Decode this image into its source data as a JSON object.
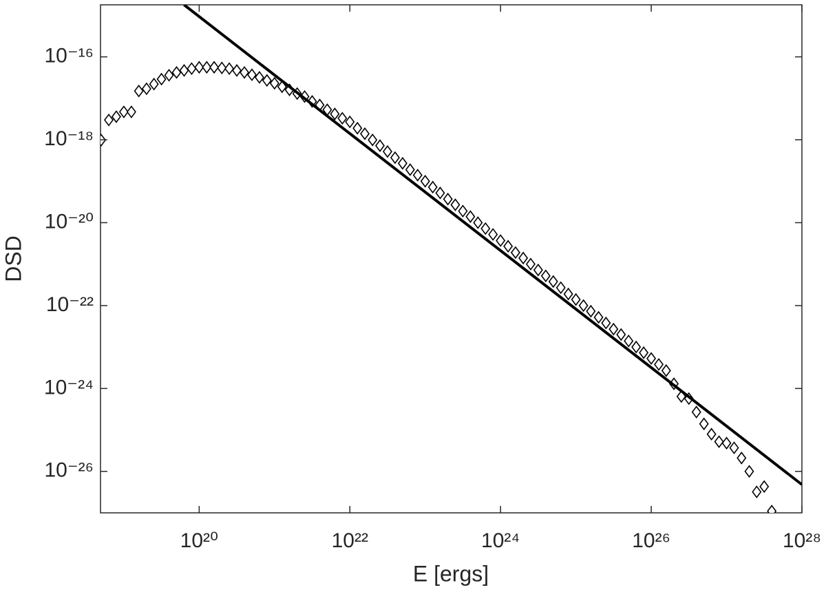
{
  "chart_data": {
    "type": "scatter",
    "xlabel": "E [ergs]",
    "ylabel": "DSD",
    "xscale": "log",
    "yscale": "log",
    "xlim": [
      4.9e+18,
      1e+28
    ],
    "ylim": [
      1e-27,
      1.8e-15
    ],
    "xticks": [
      {
        "value": 1e+20,
        "label": "10²⁰"
      },
      {
        "value": 1e+22,
        "label": "10²²"
      },
      {
        "value": 1e+24,
        "label": "10²⁴"
      },
      {
        "value": 1e+26,
        "label": "10²⁶"
      },
      {
        "value": 1e+28,
        "label": "10²⁸"
      }
    ],
    "yticks": [
      {
        "value": 1e-26,
        "label": "10⁻²⁶"
      },
      {
        "value": 1e-24,
        "label": "10⁻²⁴"
      },
      {
        "value": 1e-22,
        "label": "10⁻²²"
      },
      {
        "value": 1e-20,
        "label": "10⁻²⁰"
      },
      {
        "value": 1e-18,
        "label": "10⁻¹⁸"
      },
      {
        "value": 1e-16,
        "label": "10⁻¹⁶"
      }
    ],
    "grid": false,
    "series": [
      {
        "mode": "markers",
        "marker": "diamond",
        "color": "#000000",
        "x": [
          5.01e+18,
          6.31e+18,
          7.94e+18,
          1e+19,
          1.26e+19,
          1.58e+19,
          2e+19,
          2.51e+19,
          3.16e+19,
          3.98e+19,
          5.01e+19,
          6.31e+19,
          7.94e+19,
          1e+20,
          1.26e+20,
          1.58e+20,
          2e+20,
          2.51e+20,
          3.16e+20,
          3.98e+20,
          5.01e+20,
          6.31e+20,
          7.94e+20,
          1e+21,
          1.26e+21,
          1.58e+21,
          2e+21,
          2.51e+21,
          3.16e+21,
          3.98e+21,
          5.01e+21,
          6.31e+21,
          7.94e+21,
          1e+22,
          1.26e+22,
          1.58e+22,
          2e+22,
          2.51e+22,
          3.16e+22,
          3.98e+22,
          5.01e+22,
          6.31e+22,
          7.94e+22,
          1e+23,
          1.26e+23,
          1.58e+23,
          2e+23,
          2.51e+23,
          3.16e+23,
          3.98e+23,
          5.01e+23,
          6.31e+23,
          7.94e+23,
          1e+24,
          1.26e+24,
          1.58e+24,
          2e+24,
          2.51e+24,
          3.16e+24,
          3.98e+24,
          5.01e+24,
          6.31e+24,
          7.94e+24,
          1e+25,
          1.26e+25,
          1.58e+25,
          2e+25,
          2.51e+25,
          3.16e+25,
          3.98e+25,
          5.01e+25,
          6.31e+25,
          7.94e+25,
          1e+26,
          1.26e+26,
          1.58e+26,
          2e+26,
          2.51e+26,
          3.16e+26,
          3.98e+26,
          5.01e+26,
          6.31e+26,
          7.94e+26,
          1e+27,
          1.26e+27,
          1.58e+27,
          2e+27,
          2.51e+27,
          3.16e+27,
          3.98e+27
        ],
        "values": [
          9.8e-19,
          3e-18,
          3.6e-18,
          4.7e-18,
          4.7e-18,
          1.5e-17,
          1.7e-17,
          2.2e-17,
          2.9e-17,
          3.6e-17,
          4.2e-17,
          4.7e-17,
          5.2e-17,
          5.6e-17,
          5.6e-17,
          5.6e-17,
          5.4e-17,
          5.2e-17,
          4.7e-17,
          4.2e-17,
          3.7e-17,
          3.2e-17,
          2.7e-17,
          2.3e-17,
          1.9e-17,
          1.6e-17,
          1.3e-17,
          1.1e-17,
          8.4e-18,
          6.9e-18,
          5.3e-18,
          4.2e-18,
          3.3e-18,
          2.7e-18,
          1.9e-18,
          1.4e-18,
          9.9e-19,
          7.2e-19,
          5.2e-19,
          3.7e-19,
          2.7e-19,
          1.9e-19,
          1.4e-19,
          1e-19,
          7.2e-20,
          5.2e-20,
          3.7e-20,
          2.7e-20,
          1.9e-20,
          1.4e-20,
          1e-20,
          7.2e-21,
          5.2e-21,
          3.7e-21,
          2.7e-21,
          1.9e-21,
          1.4e-21,
          1e-21,
          7.2e-22,
          5.2e-22,
          3.8e-22,
          2.7e-22,
          1.9e-22,
          1.4e-22,
          1e-22,
          7.3e-23,
          5.2e-23,
          3.8e-23,
          2.7e-23,
          2e-23,
          1.4e-23,
          1e-23,
          7.3e-24,
          5.3e-24,
          3.8e-24,
          2.7e-24,
          1.3e-24,
          6.4e-25,
          5.7e-25,
          2.7e-25,
          1.4e-25,
          7.9e-26,
          5.2e-26,
          4.8e-26,
          3.7e-26,
          2.1e-26,
          1e-26,
          3.2e-27,
          4.3e-27,
          1.1e-27
        ]
      },
      {
        "mode": "line",
        "color": "#000000",
        "x": [
          6.3e+19,
          1e+28
        ],
        "values": [
          1.8e-15,
          4.8e-27
        ]
      }
    ]
  }
}
